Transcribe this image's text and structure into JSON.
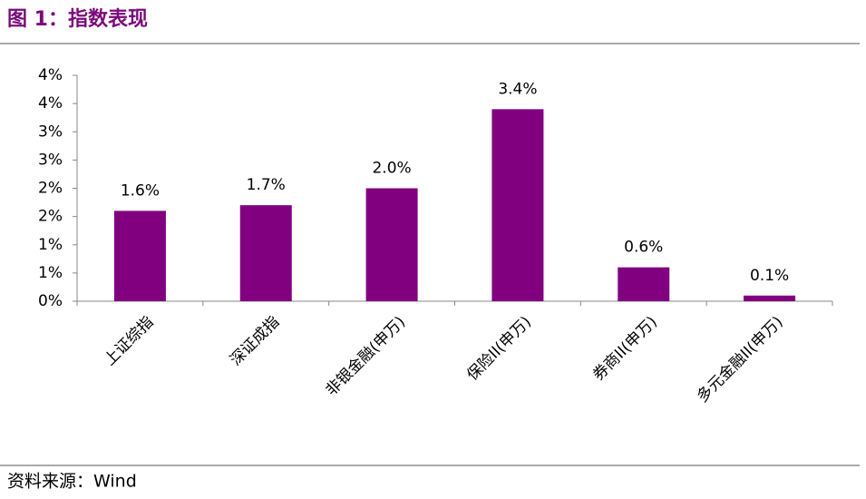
{
  "chart_data": {
    "type": "bar",
    "title": "图 1：指数表现",
    "source": "资料来源：Wind",
    "categories": [
      "上证综指",
      "深证成指",
      "非银金融(申万)",
      "保险II(申万)",
      "券商II(申万)",
      "多元金融II(申万)"
    ],
    "values": [
      1.6,
      1.7,
      2.0,
      3.4,
      0.6,
      0.1
    ],
    "value_labels": [
      "1.6%",
      "1.7%",
      "2.0%",
      "3.4%",
      "0.6%",
      "0.1%"
    ],
    "color": "#800080",
    "ylim": [
      0,
      4
    ],
    "yticks": [
      {
        "value": 0,
        "label": "0%"
      },
      {
        "value": 0.5,
        "label": "1%"
      },
      {
        "value": 1,
        "label": "1%"
      },
      {
        "value": 1.5,
        "label": "2%"
      },
      {
        "value": 2,
        "label": "2%"
      },
      {
        "value": 2.5,
        "label": "3%"
      },
      {
        "value": 3,
        "label": "3%"
      },
      {
        "value": 3.5,
        "label": "4%"
      },
      {
        "value": 4,
        "label": "4%"
      }
    ],
    "grid": false
  }
}
